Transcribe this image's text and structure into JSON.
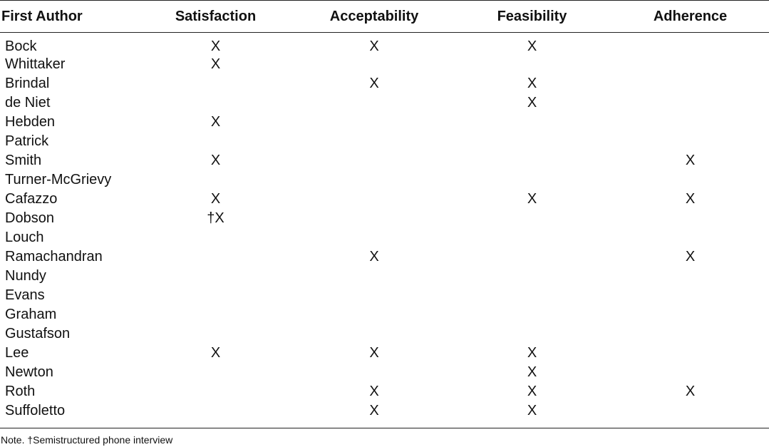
{
  "table": {
    "headers": {
      "author": "First Author",
      "satisfaction": "Satisfaction",
      "acceptability": "Acceptability",
      "feasibility": "Feasibility",
      "adherence": "Adherence"
    },
    "rows": [
      {
        "author": "Bock",
        "satisfaction": "X",
        "acceptability": "X",
        "feasibility": "X",
        "adherence": ""
      },
      {
        "author": "Whittaker",
        "satisfaction": "X",
        "acceptability": "",
        "feasibility": "",
        "adherence": ""
      },
      {
        "author": "Brindal",
        "satisfaction": "",
        "acceptability": "X",
        "feasibility": "X",
        "adherence": ""
      },
      {
        "author": "de Niet",
        "satisfaction": "",
        "acceptability": "",
        "feasibility": "X",
        "adherence": ""
      },
      {
        "author": "Hebden",
        "satisfaction": "X",
        "acceptability": "",
        "feasibility": "",
        "adherence": ""
      },
      {
        "author": "Patrick",
        "satisfaction": "",
        "acceptability": "",
        "feasibility": "",
        "adherence": ""
      },
      {
        "author": "Smith",
        "satisfaction": "X",
        "acceptability": "",
        "feasibility": "",
        "adherence": "X"
      },
      {
        "author": "Turner-McGrievy",
        "satisfaction": "",
        "acceptability": "",
        "feasibility": "",
        "adherence": ""
      },
      {
        "author": "Cafazzo",
        "satisfaction": "X",
        "acceptability": "",
        "feasibility": "X",
        "adherence": "X"
      },
      {
        "author": "Dobson",
        "satisfaction": "†X",
        "acceptability": "",
        "feasibility": "",
        "adherence": ""
      },
      {
        "author": "Louch",
        "satisfaction": "",
        "acceptability": "",
        "feasibility": "",
        "adherence": ""
      },
      {
        "author": "Ramachandran",
        "satisfaction": "",
        "acceptability": "X",
        "feasibility": "",
        "adherence": "X"
      },
      {
        "author": "Nundy",
        "satisfaction": "",
        "acceptability": "",
        "feasibility": "",
        "adherence": ""
      },
      {
        "author": "Evans",
        "satisfaction": "",
        "acceptability": "",
        "feasibility": "",
        "adherence": ""
      },
      {
        "author": "Graham",
        "satisfaction": "",
        "acceptability": "",
        "feasibility": "",
        "adherence": ""
      },
      {
        "author": "Gustafson",
        "satisfaction": "",
        "acceptability": "",
        "feasibility": "",
        "adherence": ""
      },
      {
        "author": "Lee",
        "satisfaction": "X",
        "acceptability": "X",
        "feasibility": "X",
        "adherence": ""
      },
      {
        "author": "Newton",
        "satisfaction": "",
        "acceptability": "",
        "feasibility": "X",
        "adherence": ""
      },
      {
        "author": "Roth",
        "satisfaction": "",
        "acceptability": "X",
        "feasibility": "X",
        "adherence": "X"
      },
      {
        "author": "Suffoletto",
        "satisfaction": "",
        "acceptability": "X",
        "feasibility": "X",
        "adherence": ""
      }
    ]
  },
  "note": "Note. †Semistructured phone interview"
}
